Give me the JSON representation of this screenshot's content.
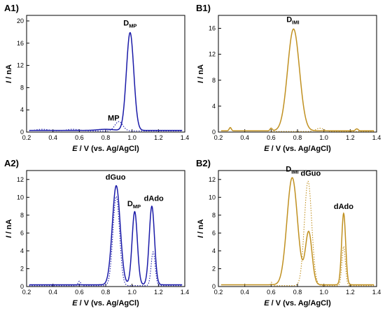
{
  "figure": {
    "panels": [
      {
        "id": "A1",
        "label": "A1)",
        "color": "#1a1aa8",
        "xlabel_main": "E",
        "xlabel_rest": " / V (vs. Ag/AgCl)",
        "ylabel_main": "I",
        "ylabel_rest": " / nA",
        "xlim": [
          0.2,
          1.4
        ],
        "ylim": [
          0,
          21
        ],
        "xticks": [
          0.2,
          0.4,
          0.6,
          0.8,
          1.0,
          1.2,
          1.4
        ],
        "yticks": [
          0,
          4,
          8,
          12,
          16,
          20
        ],
        "annotations": [
          {
            "main": "D",
            "sub": "MP",
            "x": 0.985,
            "y": 19.2
          },
          {
            "main": "MP",
            "sub": "",
            "x": 0.86,
            "y": 2.1
          }
        ],
        "solid_baseline": 0.3,
        "solid_peaks": [
          [
            0.985,
            17.6,
            0.028
          ],
          [
            0.8,
            0.2,
            0.06
          ]
        ],
        "dotted_baseline": 0.2,
        "dotted_peaks": [
          [
            0.9,
            1.7,
            0.03
          ],
          [
            0.32,
            0.3,
            0.05
          ],
          [
            0.55,
            0.3,
            0.05
          ]
        ]
      },
      {
        "id": "B1",
        "label": "B1)",
        "color": "#c09020",
        "xlabel_main": "E",
        "xlabel_rest": " / V (vs. Ag/AgCl)",
        "ylabel_main": "I",
        "ylabel_rest": " / nA",
        "xlim": [
          0.2,
          1.4
        ],
        "ylim": [
          0,
          18
        ],
        "xticks": [
          0.2,
          0.4,
          0.6,
          0.8,
          1.0,
          1.2,
          1.4
        ],
        "yticks": [
          0,
          4,
          8,
          12,
          16
        ],
        "annotations": [
          {
            "main": "D",
            "sub": "IMI",
            "x": 0.765,
            "y": 17.0
          }
        ],
        "solid_baseline": 0.2,
        "solid_peaks": [
          [
            0.77,
            15.7,
            0.045
          ],
          [
            0.29,
            0.5,
            0.008
          ],
          [
            0.6,
            0.4,
            0.008
          ],
          [
            1.25,
            0.3,
            0.01
          ]
        ],
        "dotted_baseline": 0.1,
        "dotted_peaks": [
          [
            0.97,
            0.5,
            0.03
          ]
        ]
      },
      {
        "id": "A2",
        "label": "A2)",
        "color": "#1a1aa8",
        "xlabel_main": "E",
        "xlabel_rest": " / V (vs. Ag/AgCl)",
        "ylabel_main": "I",
        "ylabel_rest": " / nA",
        "xlim": [
          0.2,
          1.4
        ],
        "ylim": [
          0,
          13
        ],
        "xticks": [
          0.2,
          0.4,
          0.6,
          0.8,
          1.0,
          1.2,
          1.4
        ],
        "yticks": [
          0,
          2,
          4,
          6,
          8,
          10,
          12
        ],
        "annotations": [
          {
            "main": "dGuo",
            "sub": "",
            "x": 0.875,
            "y": 12.0
          },
          {
            "main": "D",
            "sub": "MP",
            "x": 1.015,
            "y": 9.0
          },
          {
            "main": "dAdo",
            "sub": "",
            "x": 1.165,
            "y": 9.6
          }
        ],
        "solid_baseline": 0.2,
        "solid_peaks": [
          [
            0.88,
            11.1,
            0.03
          ],
          [
            1.02,
            8.2,
            0.02
          ],
          [
            1.15,
            8.8,
            0.02
          ]
        ],
        "dotted_baseline": 0.1,
        "dotted_peaks": [
          [
            0.88,
            10.0,
            0.025
          ],
          [
            1.16,
            3.8,
            0.015
          ],
          [
            0.6,
            0.5,
            0.01
          ]
        ]
      },
      {
        "id": "B2",
        "label": "B2)",
        "color": "#c09020",
        "xlabel_main": "E",
        "xlabel_rest": " / V (vs. Ag/AgCl)",
        "ylabel_main": "I",
        "ylabel_rest": " / nA",
        "xlim": [
          0.2,
          1.4
        ],
        "ylim": [
          0,
          13
        ],
        "xticks": [
          0.2,
          0.4,
          0.6,
          0.8,
          1.0,
          1.2,
          1.4
        ],
        "yticks": [
          0,
          2,
          4,
          6,
          8,
          10,
          12
        ],
        "annotations": [
          {
            "main": "D",
            "sub": "IMI",
            "x": 0.76,
            "y": 12.9
          },
          {
            "main": "dGuo",
            "sub": "",
            "x": 0.9,
            "y": 12.4
          },
          {
            "main": "dAdo",
            "sub": "",
            "x": 1.15,
            "y": 8.7
          }
        ],
        "solid_baseline": 0.2,
        "solid_peaks": [
          [
            0.76,
            12.0,
            0.04
          ],
          [
            0.885,
            5.9,
            0.025
          ],
          [
            1.15,
            8.0,
            0.015
          ]
        ],
        "dotted_baseline": 0.1,
        "dotted_peaks": [
          [
            0.88,
            11.7,
            0.028
          ],
          [
            1.15,
            4.4,
            0.013
          ],
          [
            0.6,
            0.4,
            0.008
          ]
        ]
      }
    ]
  },
  "chart_data": [
    {
      "type": "line",
      "title": "A1)",
      "xlabel": "E / V (vs. Ag/AgCl)",
      "ylabel": "I / nA",
      "xlim": [
        0.2,
        1.4
      ],
      "ylim": [
        0,
        21
      ],
      "grid": false,
      "series": [
        {
          "style": "solid",
          "x": [
            0.2,
            0.8,
            0.985,
            1.4
          ],
          "values": [
            0.3,
            0.5,
            17.9,
            0.3
          ]
        },
        {
          "style": "dotted",
          "x": [
            0.2,
            0.9,
            1.4
          ],
          "values": [
            0.2,
            1.9,
            0.2
          ]
        }
      ],
      "annotations": [
        "D_MP",
        "MP"
      ]
    },
    {
      "type": "line",
      "title": "B1)",
      "xlabel": "E / V (vs. Ag/AgCl)",
      "ylabel": "I / nA",
      "xlim": [
        0.2,
        1.4
      ],
      "ylim": [
        0,
        18
      ],
      "grid": false,
      "series": [
        {
          "style": "solid",
          "x": [
            0.2,
            0.77,
            1.4
          ],
          "values": [
            0.2,
            15.9,
            0.2
          ]
        },
        {
          "style": "dotted",
          "x": [
            0.2,
            0.97,
            1.4
          ],
          "values": [
            0.1,
            0.6,
            0.1
          ]
        }
      ],
      "annotations": [
        "D_IMI"
      ]
    },
    {
      "type": "line",
      "title": "A2)",
      "xlabel": "E / V (vs. Ag/AgCl)",
      "ylabel": "I / nA",
      "xlim": [
        0.2,
        1.4
      ],
      "ylim": [
        0,
        13
      ],
      "grid": false,
      "series": [
        {
          "style": "solid",
          "x": [
            0.2,
            0.88,
            1.02,
            1.15,
            1.4
          ],
          "values": [
            0.2,
            11.3,
            8.4,
            9.0,
            0.2
          ]
        },
        {
          "style": "dotted",
          "x": [
            0.2,
            0.88,
            1.16,
            1.4
          ],
          "values": [
            0.1,
            10.1,
            3.9,
            0.1
          ]
        }
      ],
      "annotations": [
        "dGuo",
        "D_MP",
        "dAdo"
      ]
    },
    {
      "type": "line",
      "title": "B2)",
      "xlabel": "E / V (vs. Ag/AgCl)",
      "ylabel": "I / nA",
      "xlim": [
        0.2,
        1.4
      ],
      "ylim": [
        0,
        13
      ],
      "grid": false,
      "series": [
        {
          "style": "solid",
          "x": [
            0.2,
            0.76,
            0.885,
            1.15,
            1.4
          ],
          "values": [
            0.2,
            12.2,
            6.1,
            8.2,
            0.2
          ]
        },
        {
          "style": "dotted",
          "x": [
            0.2,
            0.88,
            1.15,
            1.4
          ],
          "values": [
            0.1,
            11.8,
            4.5,
            0.1
          ]
        }
      ],
      "annotations": [
        "D_IMI",
        "dGuo",
        "dAdo"
      ]
    }
  ]
}
